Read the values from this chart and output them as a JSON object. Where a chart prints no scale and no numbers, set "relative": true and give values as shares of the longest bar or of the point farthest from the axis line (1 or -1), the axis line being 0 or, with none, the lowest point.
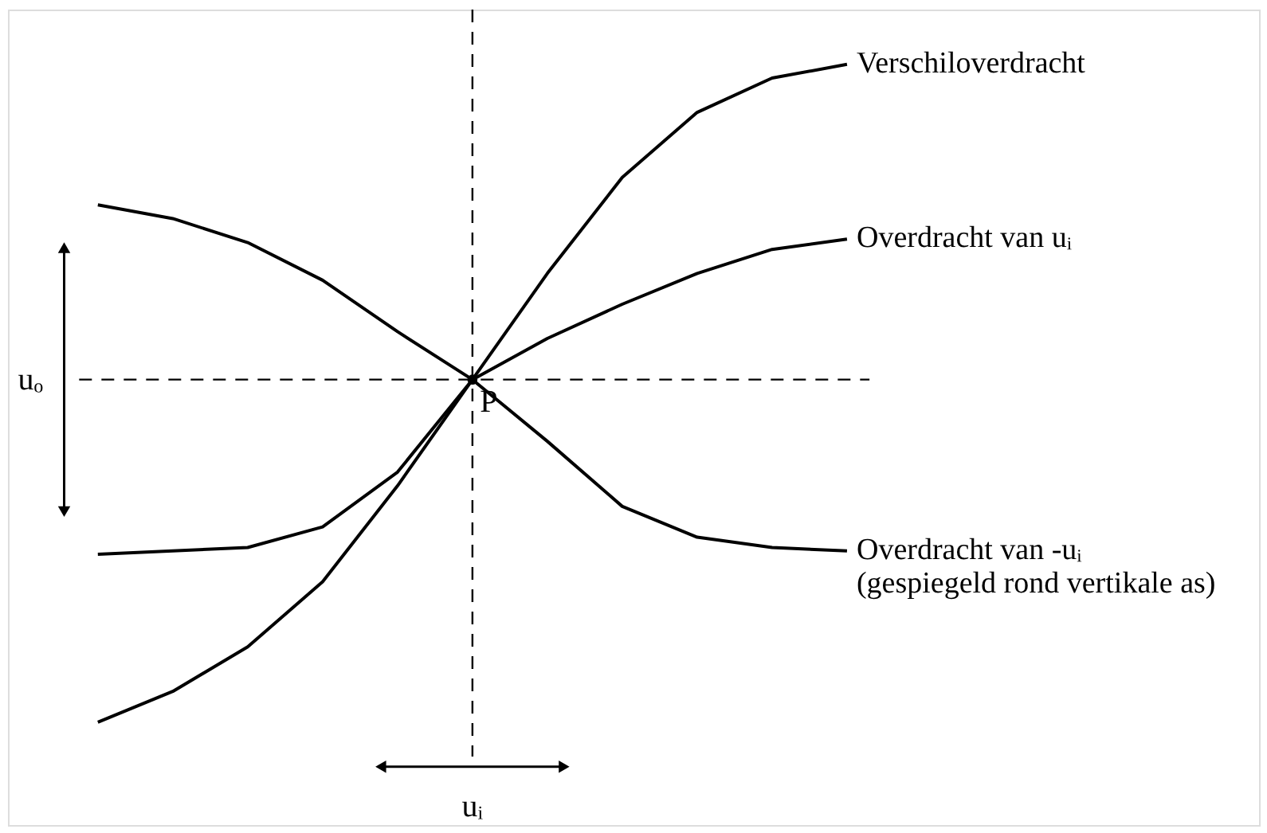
{
  "chart_data": {
    "type": "line",
    "relative": true,
    "categories": [
      null,
      null,
      null,
      null,
      null,
      null,
      null,
      null,
      null,
      null,
      null
    ],
    "series": [
      {
        "name": "Verschiloverdracht",
        "color": "#000000",
        "values": [
          -1,
          -0.91,
          -0.78,
          -0.59,
          -0.31,
          0,
          0.31,
          0.59,
          0.78,
          0.88,
          0.92
        ]
      },
      {
        "name": "Overdracht van uᵢ",
        "color": "#000000",
        "values": [
          -0.51,
          -0.5,
          -0.49,
          -0.43,
          -0.27,
          0,
          0.12,
          0.22,
          0.31,
          0.38,
          0.41
        ]
      },
      {
        "name": "Overdracht van -uᵢ\n(gespiegeld rond vertikale as)",
        "color": "#000000",
        "values": [
          0.51,
          0.47,
          0.4,
          0.29,
          0.14,
          0,
          -0.18,
          -0.37,
          -0.46,
          -0.49,
          -0.5
        ]
      }
    ],
    "annotations": [
      "P",
      "uₒ",
      "uᵢ"
    ]
  }
}
